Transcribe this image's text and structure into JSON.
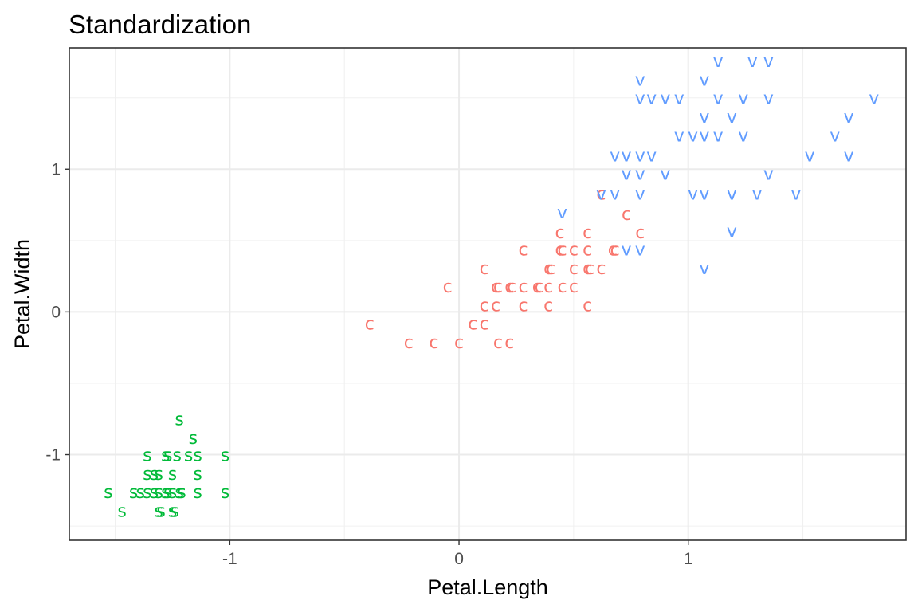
{
  "chart_data": {
    "type": "scatter",
    "title": "Standardization",
    "xlabel": "Petal.Length",
    "ylabel": "Petal.Width",
    "xlim": [
      -1.7,
      1.95
    ],
    "ylim": [
      -1.6,
      1.85
    ],
    "x_ticks": [
      -1,
      0,
      1
    ],
    "x_tick_labels": [
      "-1",
      "0",
      "1"
    ],
    "y_ticks": [
      -1,
      0,
      1
    ],
    "y_tick_labels": [
      "-1",
      "0",
      "1"
    ],
    "grid": true,
    "legend": "none",
    "series": [
      {
        "label": "s",
        "color": "#00ba38",
        "points": [
          [
            -1.22,
            -0.75
          ],
          [
            -1.16,
            -0.88
          ],
          [
            -1.36,
            -1.0
          ],
          [
            -1.28,
            -1.0
          ],
          [
            -1.27,
            -1.0
          ],
          [
            -1.23,
            -1.0
          ],
          [
            -1.18,
            -1.0
          ],
          [
            -1.14,
            -1.0
          ],
          [
            -1.02,
            -1.0
          ],
          [
            -1.36,
            -1.13
          ],
          [
            -1.33,
            -1.13
          ],
          [
            -1.31,
            -1.13
          ],
          [
            -1.25,
            -1.13
          ],
          [
            -1.14,
            -1.13
          ],
          [
            -1.53,
            -1.26
          ],
          [
            -1.42,
            -1.26
          ],
          [
            -1.39,
            -1.26
          ],
          [
            -1.36,
            -1.26
          ],
          [
            -1.33,
            -1.26
          ],
          [
            -1.31,
            -1.26
          ],
          [
            -1.28,
            -1.26
          ],
          [
            -1.27,
            -1.26
          ],
          [
            -1.25,
            -1.26
          ],
          [
            -1.22,
            -1.26
          ],
          [
            -1.21,
            -1.26
          ],
          [
            -1.14,
            -1.26
          ],
          [
            -1.02,
            -1.26
          ],
          [
            -1.47,
            -1.39
          ],
          [
            -1.31,
            -1.39
          ],
          [
            -1.3,
            -1.39
          ],
          [
            -1.25,
            -1.39
          ],
          [
            -1.24,
            -1.39
          ]
        ]
      },
      {
        "label": "c",
        "color": "#f8766d",
        "points": [
          [
            0.62,
            0.83
          ],
          [
            0.73,
            0.69
          ],
          [
            0.44,
            0.56
          ],
          [
            0.56,
            0.56
          ],
          [
            0.79,
            0.56
          ],
          [
            0.28,
            0.44
          ],
          [
            0.44,
            0.44
          ],
          [
            0.45,
            0.44
          ],
          [
            0.5,
            0.44
          ],
          [
            0.56,
            0.44
          ],
          [
            0.67,
            0.44
          ],
          [
            0.68,
            0.44
          ],
          [
            0.11,
            0.31
          ],
          [
            0.39,
            0.31
          ],
          [
            0.4,
            0.31
          ],
          [
            0.5,
            0.31
          ],
          [
            0.56,
            0.31
          ],
          [
            0.57,
            0.31
          ],
          [
            0.62,
            0.31
          ],
          [
            -0.05,
            0.18
          ],
          [
            0.16,
            0.18
          ],
          [
            0.17,
            0.18
          ],
          [
            0.22,
            0.18
          ],
          [
            0.23,
            0.18
          ],
          [
            0.28,
            0.18
          ],
          [
            0.34,
            0.18
          ],
          [
            0.35,
            0.18
          ],
          [
            0.39,
            0.18
          ],
          [
            0.45,
            0.18
          ],
          [
            0.5,
            0.18
          ],
          [
            0.11,
            0.05
          ],
          [
            0.16,
            0.05
          ],
          [
            0.28,
            0.05
          ],
          [
            0.39,
            0.05
          ],
          [
            0.56,
            0.05
          ],
          [
            -0.39,
            -0.08
          ],
          [
            0.06,
            -0.08
          ],
          [
            0.11,
            -0.08
          ],
          [
            -0.22,
            -0.21
          ],
          [
            -0.11,
            -0.21
          ],
          [
            0.0,
            -0.21
          ],
          [
            0.17,
            -0.21
          ],
          [
            0.22,
            -0.21
          ]
        ]
      },
      {
        "label": "v",
        "color": "#619cff",
        "points": [
          [
            1.13,
            1.76
          ],
          [
            1.28,
            1.76
          ],
          [
            1.35,
            1.76
          ],
          [
            0.79,
            1.63
          ],
          [
            1.07,
            1.63
          ],
          [
            0.79,
            1.5
          ],
          [
            0.84,
            1.5
          ],
          [
            0.9,
            1.5
          ],
          [
            0.96,
            1.5
          ],
          [
            1.13,
            1.5
          ],
          [
            1.24,
            1.5
          ],
          [
            1.35,
            1.5
          ],
          [
            1.81,
            1.5
          ],
          [
            1.07,
            1.37
          ],
          [
            1.19,
            1.37
          ],
          [
            1.7,
            1.37
          ],
          [
            0.96,
            1.24
          ],
          [
            1.02,
            1.24
          ],
          [
            1.07,
            1.24
          ],
          [
            1.13,
            1.24
          ],
          [
            1.24,
            1.24
          ],
          [
            1.64,
            1.24
          ],
          [
            0.68,
            1.1
          ],
          [
            0.73,
            1.1
          ],
          [
            0.79,
            1.1
          ],
          [
            0.84,
            1.1
          ],
          [
            1.53,
            1.1
          ],
          [
            1.7,
            1.1
          ],
          [
            0.73,
            0.97
          ],
          [
            0.79,
            0.97
          ],
          [
            0.9,
            0.97
          ],
          [
            1.35,
            0.97
          ],
          [
            0.62,
            0.83
          ],
          [
            0.68,
            0.83
          ],
          [
            0.79,
            0.83
          ],
          [
            1.02,
            0.83
          ],
          [
            1.07,
            0.83
          ],
          [
            1.19,
            0.83
          ],
          [
            1.3,
            0.83
          ],
          [
            1.47,
            0.83
          ],
          [
            0.45,
            0.7
          ],
          [
            1.19,
            0.57
          ],
          [
            0.73,
            0.44
          ],
          [
            0.79,
            0.44
          ],
          [
            1.07,
            0.31
          ]
        ]
      }
    ]
  }
}
